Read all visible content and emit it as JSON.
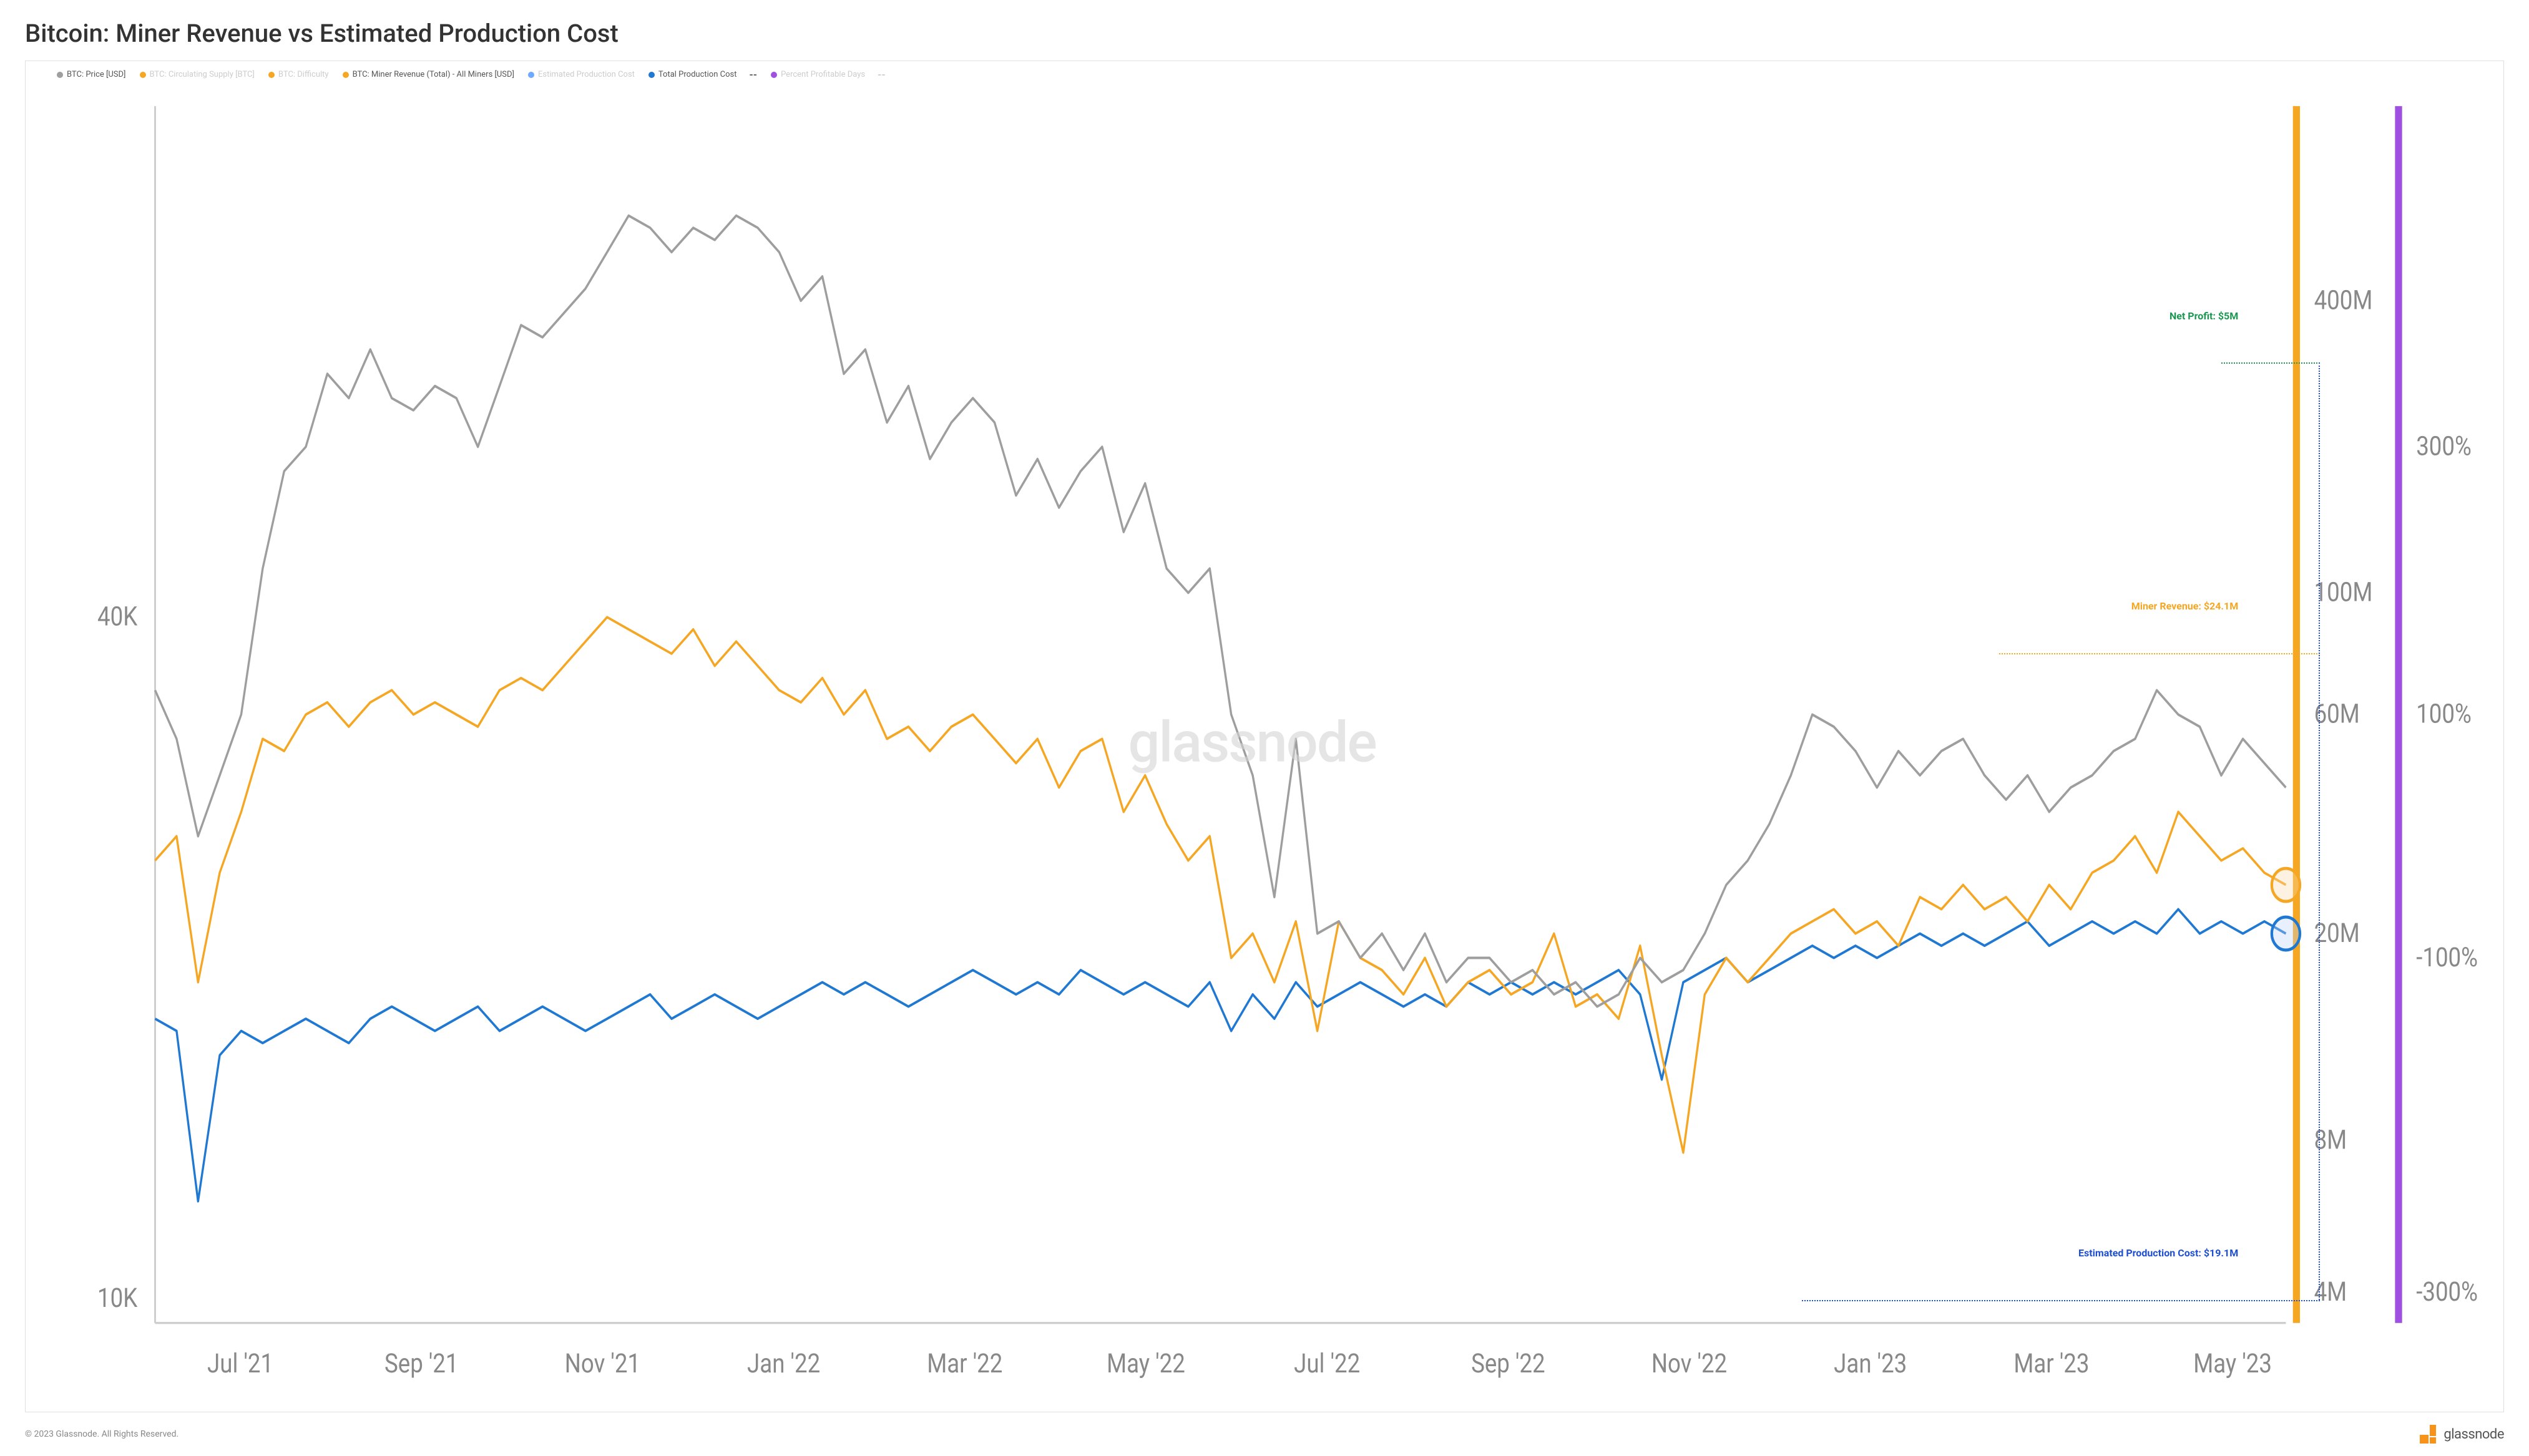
{
  "title": "Bitcoin: Miner Revenue vs Estimated Production Cost",
  "copyright": "© 2023 Glassnode. All Rights Reserved.",
  "watermark": "glassnode",
  "brand_label": "glassnode",
  "legend": [
    {
      "label": "BTC: Price [USD]",
      "color": "#9e9e9e",
      "muted": false
    },
    {
      "label": "BTC: Circulating Supply [BTC]",
      "color": "#f5a623",
      "muted": true
    },
    {
      "label": "BTC: Difficulty",
      "color": "#f5a623",
      "muted": true
    },
    {
      "label": "BTC: Miner Revenue (Total) - All Miners [USD]",
      "color": "#f5a623",
      "muted": false
    },
    {
      "label": "Estimated Production Cost",
      "color": "#6fa8ff",
      "muted": true
    },
    {
      "label": "Total Production Cost",
      "color": "#1f78d1",
      "muted": false
    },
    {
      "label": "Percent Profitable Days",
      "color": "#a050e0",
      "muted": true
    }
  ],
  "chart": {
    "type": "line",
    "background_color": "#ffffff",
    "grid_color": "#f0f0f0",
    "line_width": 1.2,
    "x_axis": {
      "labels": [
        "Jul '21",
        "Sep '21",
        "Nov '21",
        "Jan '22",
        "Mar '22",
        "May '22",
        "Jul '22",
        "Sep '22",
        "Nov '22",
        "Jan '23",
        "Mar '23",
        "May '23"
      ],
      "positions": [
        0.04,
        0.125,
        0.21,
        0.295,
        0.38,
        0.465,
        0.55,
        0.635,
        0.72,
        0.805,
        0.89,
        0.975
      ]
    },
    "y_left": {
      "scale": "log",
      "ticks": [
        {
          "v": 10000,
          "label": "10K",
          "pos": 0.98
        },
        {
          "v": 40000,
          "label": "40K",
          "pos": 0.42
        }
      ],
      "color": "#888888"
    },
    "y_right1": {
      "scale": "log",
      "ticks": [
        {
          "label": "4M",
          "pos": 0.975
        },
        {
          "label": "8M",
          "pos": 0.85
        },
        {
          "label": "20M",
          "pos": 0.68
        },
        {
          "label": "60M",
          "pos": 0.5
        },
        {
          "label": "100M",
          "pos": 0.4
        },
        {
          "label": "400M",
          "pos": 0.16
        }
      ],
      "color": "#f5a623",
      "bar_color": "#f5a623"
    },
    "y_right2": {
      "scale": "linear",
      "ticks": [
        {
          "label": "-300%",
          "pos": 0.975
        },
        {
          "label": "-100%",
          "pos": 0.7
        },
        {
          "label": "100%",
          "pos": 0.5
        },
        {
          "label": "300%",
          "pos": 0.28
        }
      ],
      "color": "#a050e0",
      "bar_color": "#a050e0"
    },
    "series": {
      "price": {
        "color": "#9e9e9e",
        "points": [
          0.48,
          0.52,
          0.6,
          0.55,
          0.5,
          0.38,
          0.3,
          0.28,
          0.22,
          0.24,
          0.2,
          0.24,
          0.25,
          0.23,
          0.24,
          0.28,
          0.23,
          0.18,
          0.19,
          0.17,
          0.15,
          0.12,
          0.09,
          0.1,
          0.12,
          0.1,
          0.11,
          0.09,
          0.1,
          0.12,
          0.16,
          0.14,
          0.22,
          0.2,
          0.26,
          0.23,
          0.29,
          0.26,
          0.24,
          0.26,
          0.32,
          0.29,
          0.33,
          0.3,
          0.28,
          0.35,
          0.31,
          0.38,
          0.4,
          0.38,
          0.5,
          0.55,
          0.65,
          0.52,
          0.68,
          0.67,
          0.7,
          0.68,
          0.71,
          0.68,
          0.72,
          0.7,
          0.7,
          0.72,
          0.71,
          0.73,
          0.72,
          0.74,
          0.73,
          0.7,
          0.72,
          0.71,
          0.68,
          0.64,
          0.62,
          0.59,
          0.55,
          0.5,
          0.51,
          0.53,
          0.56,
          0.53,
          0.55,
          0.53,
          0.52,
          0.55,
          0.57,
          0.55,
          0.58,
          0.56,
          0.55,
          0.53,
          0.52,
          0.48,
          0.5,
          0.51,
          0.55,
          0.52,
          0.54,
          0.56
        ]
      },
      "revenue": {
        "color": "#f5a623",
        "points": [
          0.62,
          0.6,
          0.72,
          0.63,
          0.58,
          0.52,
          0.53,
          0.5,
          0.49,
          0.51,
          0.49,
          0.48,
          0.5,
          0.49,
          0.5,
          0.51,
          0.48,
          0.47,
          0.48,
          0.46,
          0.44,
          0.42,
          0.43,
          0.44,
          0.45,
          0.43,
          0.46,
          0.44,
          0.46,
          0.48,
          0.49,
          0.47,
          0.5,
          0.48,
          0.52,
          0.51,
          0.53,
          0.51,
          0.5,
          0.52,
          0.54,
          0.52,
          0.56,
          0.53,
          0.52,
          0.58,
          0.55,
          0.59,
          0.62,
          0.6,
          0.7,
          0.68,
          0.72,
          0.67,
          0.76,
          0.67,
          0.7,
          0.71,
          0.73,
          0.7,
          0.74,
          0.72,
          0.71,
          0.73,
          0.72,
          0.68,
          0.74,
          0.73,
          0.75,
          0.69,
          0.78,
          0.86,
          0.73,
          0.7,
          0.72,
          0.7,
          0.68,
          0.67,
          0.66,
          0.68,
          0.67,
          0.69,
          0.65,
          0.66,
          0.64,
          0.66,
          0.65,
          0.67,
          0.64,
          0.66,
          0.63,
          0.62,
          0.6,
          0.63,
          0.58,
          0.6,
          0.62,
          0.61,
          0.63,
          0.64
        ]
      },
      "cost": {
        "color": "#1f78d1",
        "points": [
          0.75,
          0.76,
          0.9,
          0.78,
          0.76,
          0.77,
          0.76,
          0.75,
          0.76,
          0.77,
          0.75,
          0.74,
          0.75,
          0.76,
          0.75,
          0.74,
          0.76,
          0.75,
          0.74,
          0.75,
          0.76,
          0.75,
          0.74,
          0.73,
          0.75,
          0.74,
          0.73,
          0.74,
          0.75,
          0.74,
          0.73,
          0.72,
          0.73,
          0.72,
          0.73,
          0.74,
          0.73,
          0.72,
          0.71,
          0.72,
          0.73,
          0.72,
          0.73,
          0.71,
          0.72,
          0.73,
          0.72,
          0.73,
          0.74,
          0.72,
          0.76,
          0.73,
          0.75,
          0.72,
          0.74,
          0.73,
          0.72,
          0.73,
          0.74,
          0.73,
          0.74,
          0.72,
          0.73,
          0.72,
          0.73,
          0.72,
          0.73,
          0.72,
          0.71,
          0.73,
          0.8,
          0.72,
          0.71,
          0.7,
          0.72,
          0.71,
          0.7,
          0.69,
          0.7,
          0.69,
          0.7,
          0.69,
          0.68,
          0.69,
          0.68,
          0.69,
          0.68,
          0.67,
          0.69,
          0.68,
          0.67,
          0.68,
          0.67,
          0.68,
          0.66,
          0.68,
          0.67,
          0.68,
          0.67,
          0.68
        ]
      }
    }
  },
  "annotations": {
    "net_profit": {
      "label": "Net Profit: $5M",
      "color": "#1a9850",
      "top_pct": 17,
      "right_pct": 10.5,
      "line_top_pct": 21,
      "line_right_pct": 7.2,
      "line_width_pct": 4
    },
    "miner_revenue": {
      "label": "Miner Revenue: $24.1M",
      "color": "#f5a623",
      "top_pct": 39,
      "right_pct": 10.5,
      "line_top_pct": 43,
      "line_right_pct": 7.2,
      "line_width_pct": 13
    },
    "production_cost": {
      "label": "Estimated Production Cost: $19.1M",
      "color": "#1f4fd1",
      "top_pct": 88,
      "right_pct": 10.5,
      "line_top_pct": 92,
      "line_right_pct": 7.2,
      "line_width_pct": 21
    },
    "vertical_guide": {
      "color": "#1f4fd1",
      "right_pct": 7.2,
      "top_pct": 21,
      "height_pct": 71
    }
  }
}
